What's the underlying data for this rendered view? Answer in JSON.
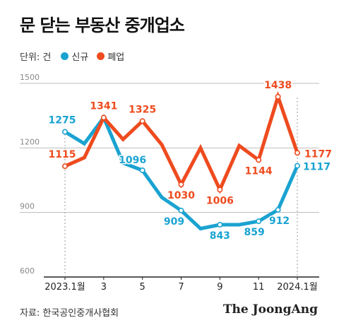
{
  "title": "문 닫는 부동산 중개업소",
  "unit_label": "단위: 건",
  "colors": {
    "new": "#1aa3d1",
    "closed": "#ee4b1f",
    "grid": "#bcbcbc",
    "axis": "#222222"
  },
  "chart_data": {
    "type": "line",
    "categories": [
      "2023.1월",
      "2",
      "3",
      "4",
      "5",
      "6",
      "7",
      "8",
      "9",
      "10",
      "11",
      "12",
      "2024.1월"
    ],
    "x_tick_labels": [
      "2023.1월",
      "",
      "3",
      "",
      "5",
      "",
      "7",
      "",
      "9",
      "",
      "11",
      "",
      "2024.1월"
    ],
    "ylim": [
      600,
      1500
    ],
    "yticks": [
      600,
      900,
      1200,
      1500
    ],
    "grid": true,
    "legend_position": "top-left",
    "series": [
      {
        "name": "신규",
        "key": "new",
        "values": [
          1275,
          1220,
          1341,
          1130,
          1096,
          970,
          909,
          825,
          843,
          843,
          859,
          912,
          1117
        ],
        "data_labels": [
          "1275",
          "",
          "",
          "",
          "1096",
          "",
          "909",
          "",
          "843",
          "",
          "859",
          "912",
          "1117"
        ]
      },
      {
        "name": "폐업",
        "key": "closed",
        "values": [
          1115,
          1155,
          1341,
          1240,
          1325,
          1215,
          1030,
          1200,
          1006,
          1210,
          1144,
          1438,
          1177
        ],
        "data_labels": [
          "1115",
          "",
          "1341",
          "",
          "1325",
          "",
          "1030",
          "",
          "1006",
          "",
          "1144",
          "1438",
          "1177"
        ]
      }
    ]
  },
  "source": "자료: 한국공인중개사협회",
  "brand": "The JoongAng"
}
